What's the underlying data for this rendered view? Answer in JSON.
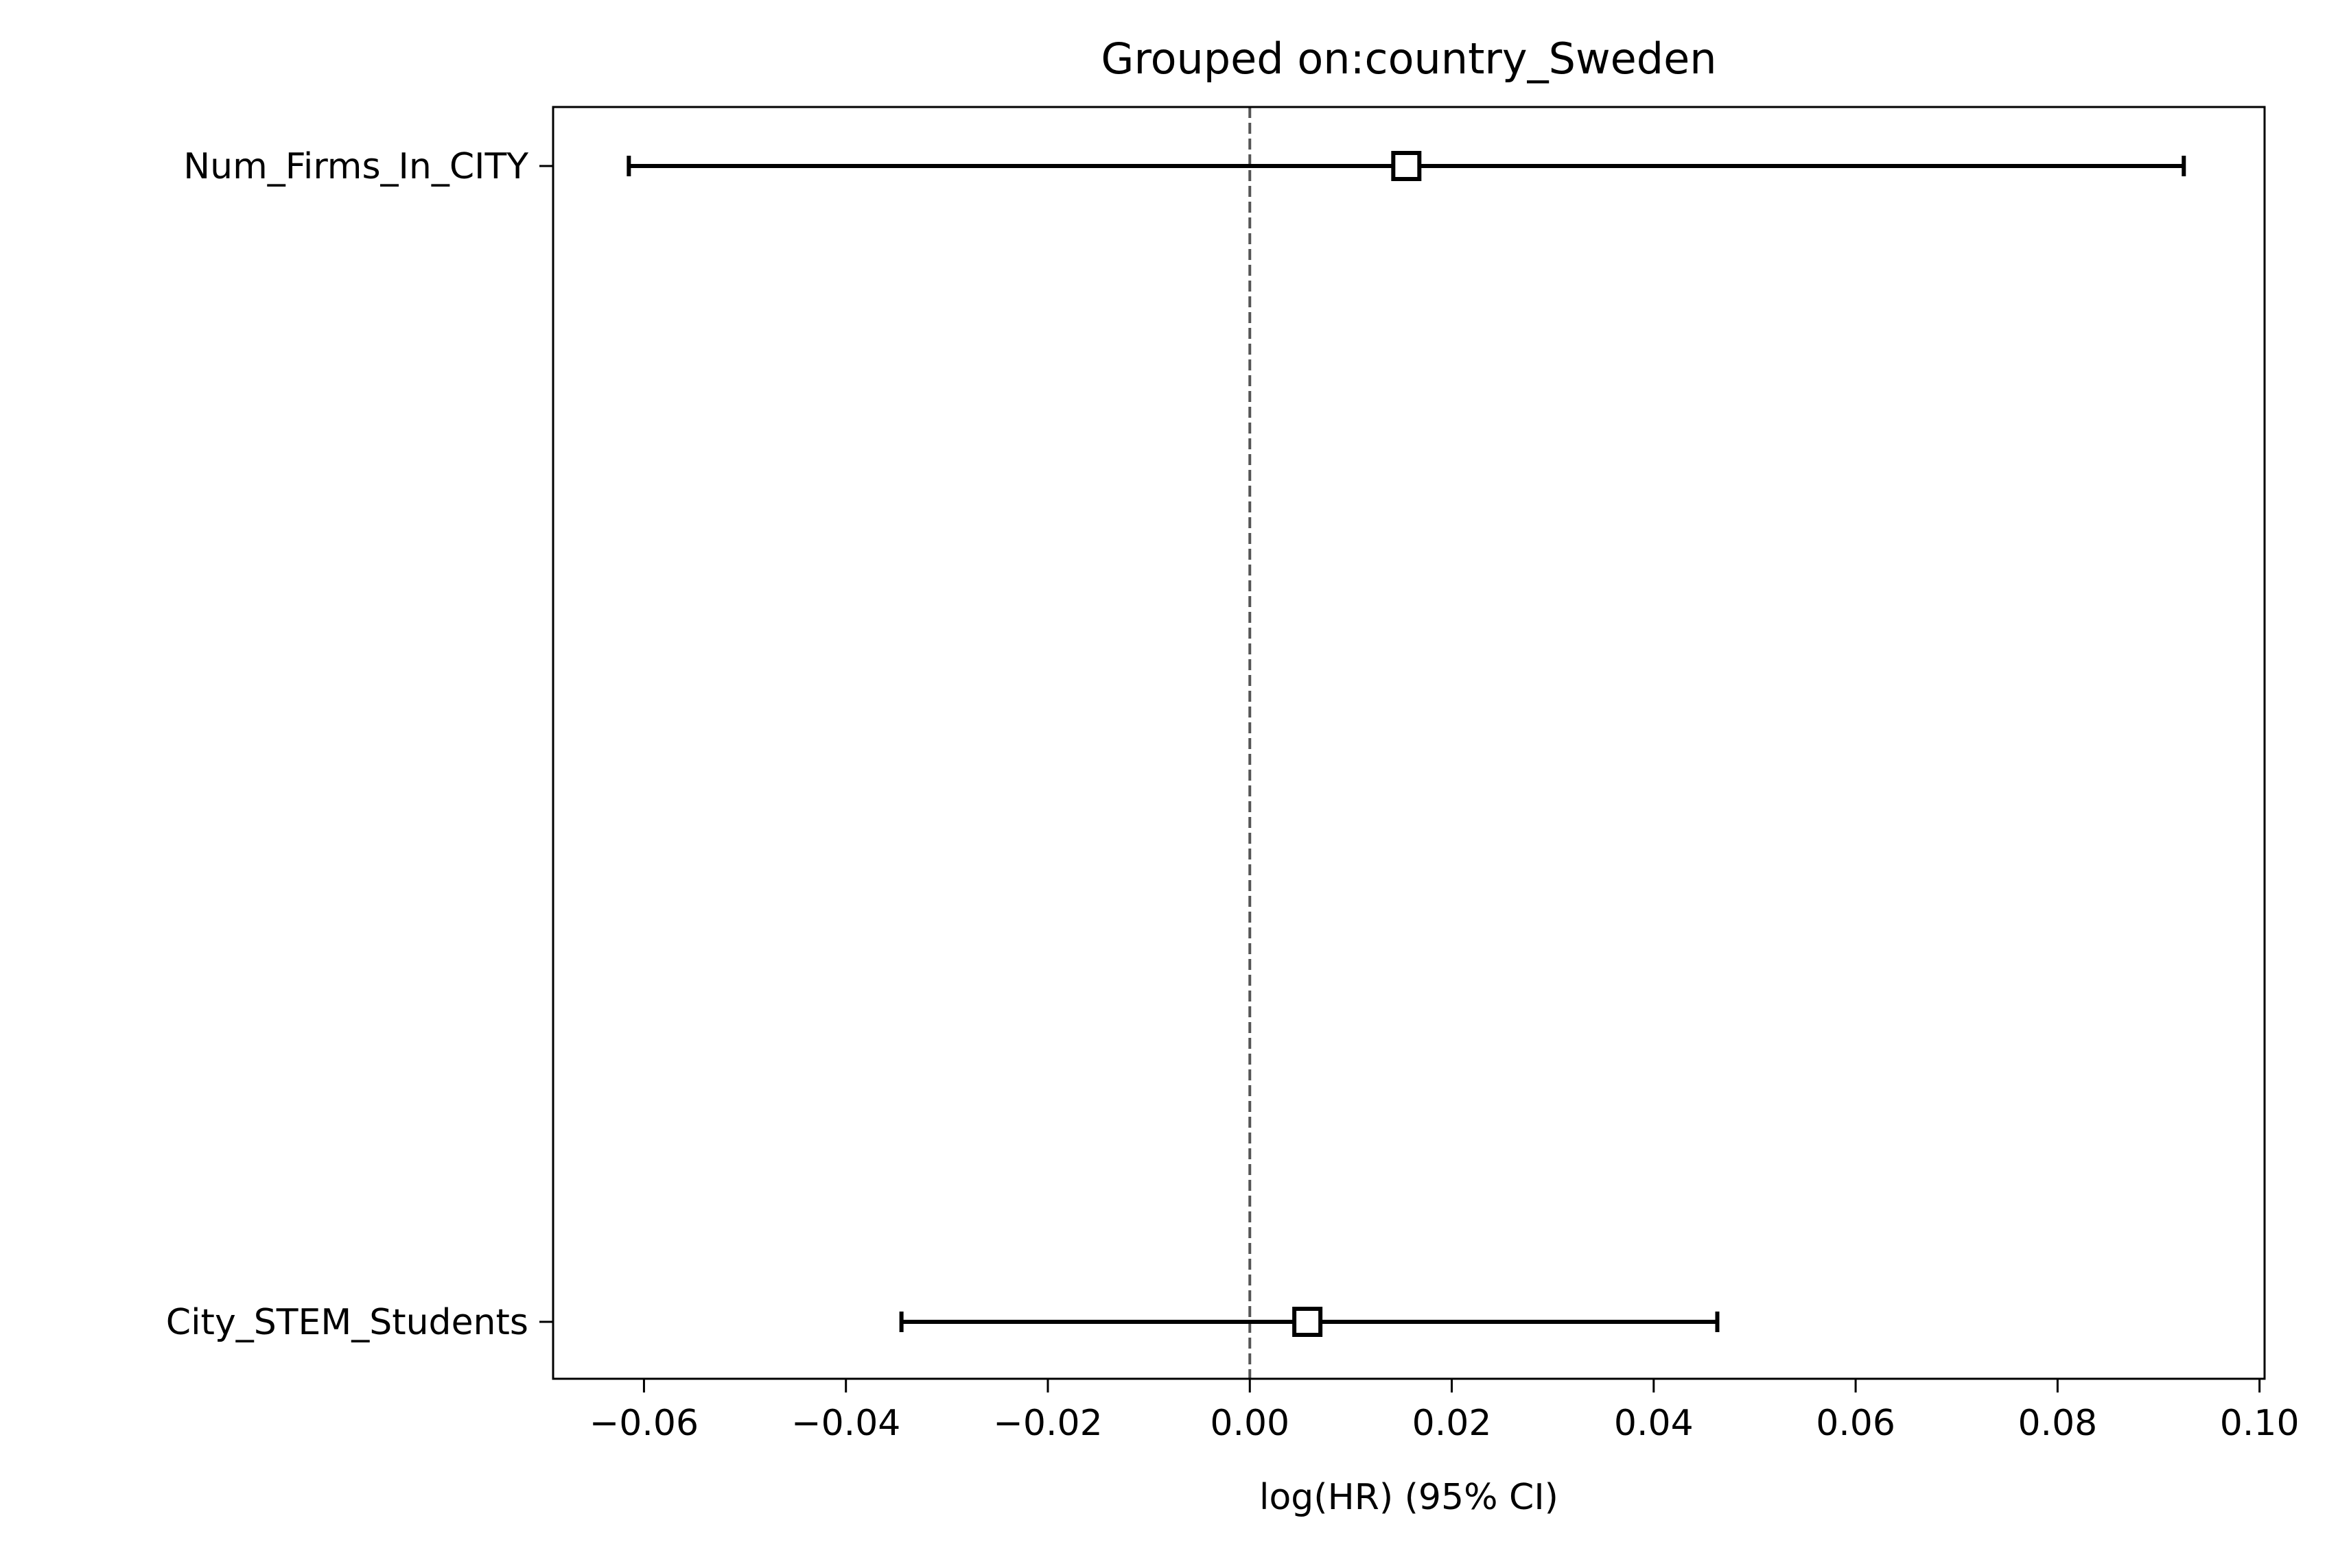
{
  "chart_data": {
    "type": "forest",
    "title": "Grouped on:country_Sweden",
    "xlabel": "log(HR) (95% CI)",
    "ylabel": "",
    "xlim": [
      -0.069,
      0.1005
    ],
    "x_ticks": [
      -0.06,
      -0.04,
      -0.02,
      0.0,
      0.02,
      0.04,
      0.06,
      0.08,
      0.1
    ],
    "x_tick_labels": [
      "−0.06",
      "−0.04",
      "−0.02",
      "0.00",
      "0.02",
      "0.04",
      "0.06",
      "0.08",
      "0.10"
    ],
    "reference_line": {
      "x": 0.0,
      "style": "dashed"
    },
    "grid": false,
    "rows": [
      {
        "label": "Num_Firms_In_CITY",
        "estimate": 0.0155,
        "ci_lower": -0.0615,
        "ci_upper": 0.0925
      },
      {
        "label": "City_STEM_Students",
        "estimate": 0.0057,
        "ci_lower": -0.0345,
        "ci_upper": 0.0463
      }
    ],
    "colors": {
      "marks": "#000000",
      "reference_line": "#555555",
      "marker_fill": "#ffffff"
    }
  }
}
